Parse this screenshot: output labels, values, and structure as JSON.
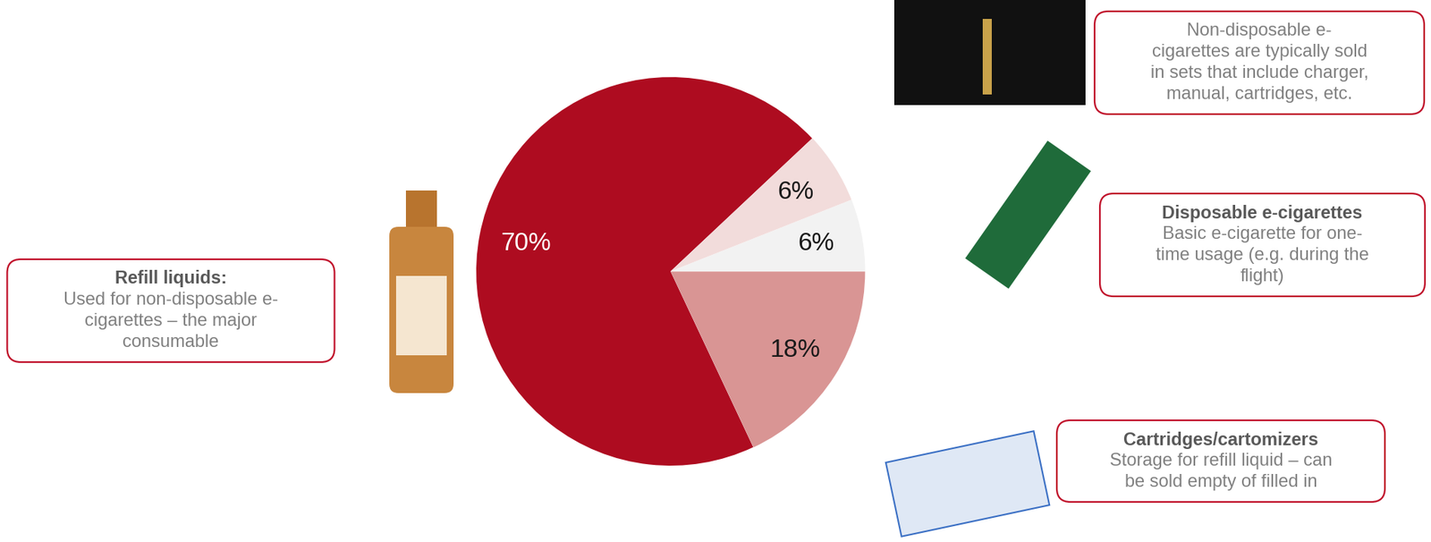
{
  "chart_data": {
    "type": "pie",
    "values": [
      70,
      18,
      6,
      6
    ],
    "value_labels": [
      "70%",
      "18%",
      "6%",
      "6%"
    ],
    "colors": [
      "#ae0c20",
      "#d99594",
      "#f2f2f2",
      "#f2dcdb"
    ],
    "data_labels": true
  },
  "callouts": [
    {
      "title": "Refill liquids:",
      "lines": [
        "Used for non-disposable e-",
        "cigarettes – the major",
        "consumable"
      ]
    },
    {
      "lines": [
        "Non-disposable e-",
        "cigarettes are typically sold",
        "in sets that include charger,",
        "manual, cartridges, etc."
      ]
    },
    {
      "title": "Disposable e-cigarettes",
      "lines": [
        "Basic e-cigarette for one-",
        "time usage (e.g. during the",
        "flight)"
      ]
    },
    {
      "title": "Cartridges/cartomizers",
      "lines": [
        "Storage for refill liquid – can",
        "be sold empty of filled in"
      ]
    }
  ]
}
